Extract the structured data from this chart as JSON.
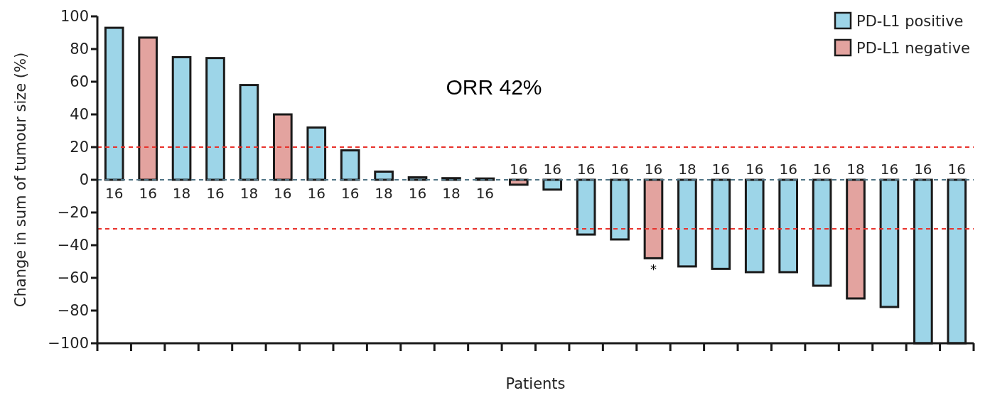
{
  "chart_data": {
    "type": "bar",
    "xlabel": "Patients",
    "ylabel": "Change in sum of tumour size (%)",
    "categories": [
      "16",
      "16",
      "18",
      "16",
      "18",
      "16",
      "16",
      "16",
      "18",
      "16",
      "18",
      "16",
      "16",
      "16",
      "16",
      "16",
      "16",
      "18",
      "16",
      "16",
      "16",
      "16",
      "18",
      "16",
      "16",
      "16"
    ],
    "series": [
      {
        "name": "PD-L1 positive",
        "color": "#9dd5e8",
        "values": [
          93,
          null,
          75,
          74.5,
          58,
          null,
          32,
          18,
          5,
          1.5,
          1,
          0.8,
          null,
          -6,
          -33.5,
          -36.5,
          null,
          -53,
          -54.5,
          -56.5,
          -56.5,
          -64.8,
          null,
          -77.8,
          -100,
          -100
        ]
      },
      {
        "name": "PD-L1 negative",
        "color": "#e3a39f",
        "values": [
          null,
          87,
          null,
          null,
          null,
          40,
          null,
          null,
          null,
          null,
          null,
          null,
          -3,
          null,
          null,
          null,
          -48,
          null,
          null,
          null,
          null,
          null,
          -72.6,
          null,
          null,
          null
        ]
      }
    ],
    "ylim": [
      -100,
      100
    ],
    "yticks": [
      -100,
      -80,
      -60,
      -40,
      -20,
      0,
      20,
      40,
      60,
      80,
      100
    ],
    "grid": false,
    "legend": "top right",
    "ref_lines": [
      {
        "axis": "y",
        "value": 20,
        "color": "#e8322c",
        "line_style": "dashed"
      },
      {
        "axis": "y",
        "value": -30,
        "color": "#e8322c",
        "line_style": "dashed"
      },
      {
        "axis": "y",
        "value": 0,
        "color": "#4f7384",
        "line_style": "dashed"
      }
    ],
    "annotations": [
      "ORR 42%",
      "*"
    ]
  }
}
